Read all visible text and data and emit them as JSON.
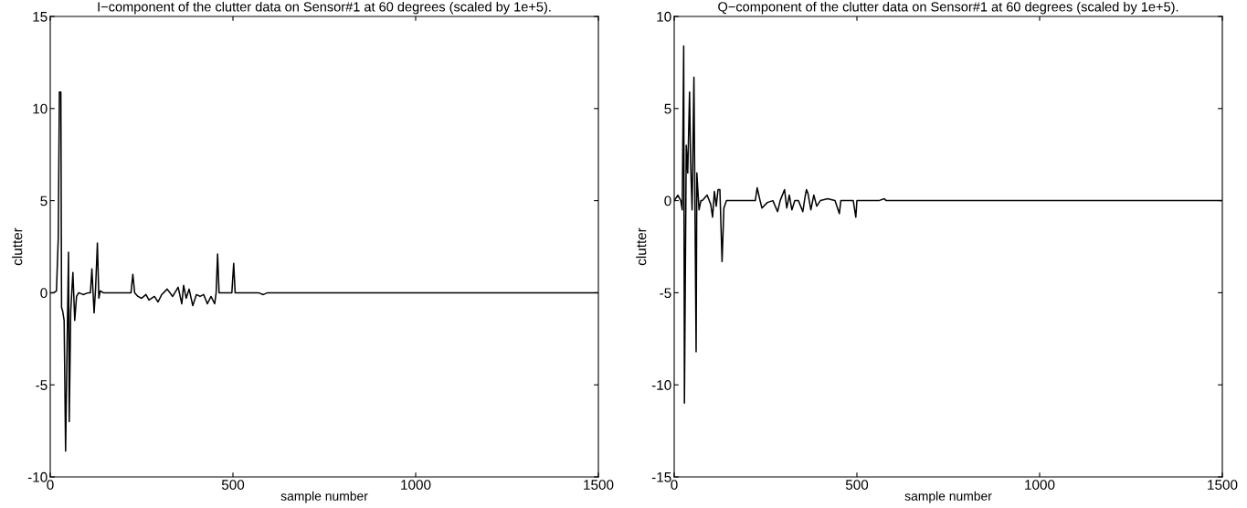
{
  "chart_data": [
    {
      "type": "line",
      "title": "I−component of the clutter data on Sensor#1 at 60 degrees (scaled by 1e+5).",
      "xlabel": "sample number",
      "ylabel": "clutter",
      "xlim": [
        0,
        1500
      ],
      "ylim": [
        -10,
        15
      ],
      "xticks": [
        0,
        500,
        1000,
        1500
      ],
      "yticks": [
        -10,
        -5,
        0,
        5,
        10,
        15
      ],
      "grid": false,
      "legend": false,
      "series": [
        {
          "color": "#000000",
          "x": [
            0,
            10,
            17,
            22,
            25,
            29,
            31,
            34,
            38,
            42,
            46,
            50,
            52,
            56,
            62,
            67,
            72,
            78,
            90,
            104,
            110,
            114,
            120,
            124,
            129,
            133,
            137,
            145,
            200,
            221,
            226,
            231,
            240,
            250,
            262,
            270,
            285,
            295,
            305,
            320,
            335,
            350,
            360,
            365,
            372,
            380,
            390,
            400,
            410,
            420,
            430,
            440,
            450,
            454,
            458,
            462,
            480,
            497,
            502,
            506,
            540,
            570,
            583,
            595,
            700,
            1000,
            1500
          ],
          "values": [
            0,
            0,
            0.1,
            3,
            10.9,
            10.9,
            -0.8,
            -1.0,
            -1.5,
            -8.6,
            -3,
            2.2,
            -7,
            -1,
            1.1,
            -1.5,
            -0.2,
            0,
            -0.1,
            0,
            0,
            1.3,
            -1.1,
            0.2,
            2.7,
            -0.3,
            0.1,
            0,
            0,
            0,
            1.0,
            0,
            -0.2,
            -0.3,
            -0.1,
            -0.4,
            -0.2,
            -0.5,
            -0.1,
            0.2,
            -0.2,
            0.3,
            -0.6,
            0.4,
            -0.3,
            0.2,
            -0.7,
            -0.1,
            -0.2,
            -0.1,
            -0.6,
            -0.2,
            -0.6,
            0,
            2.1,
            0,
            0,
            0,
            1.6,
            0,
            0,
            0,
            -0.1,
            0,
            0,
            0,
            0
          ]
        }
      ]
    },
    {
      "type": "line",
      "title": "Q−component of the clutter data on Sensor#1 at 60 degrees (scaled by 1e+5).",
      "xlabel": "sample number",
      "ylabel": "clutter",
      "xlim": [
        0,
        1500
      ],
      "ylim": [
        -15,
        10
      ],
      "xticks": [
        0,
        500,
        1000,
        1500
      ],
      "yticks": [
        -15,
        -10,
        -5,
        0,
        5,
        10
      ],
      "grid": false,
      "legend": false,
      "series": [
        {
          "color": "#000000",
          "x": [
            0,
            10,
            18,
            22,
            26,
            28,
            33,
            37,
            42,
            45,
            49,
            54,
            60,
            62,
            68,
            73,
            77,
            90,
            100,
            105,
            110,
            115,
            120,
            125,
            131,
            136,
            143,
            200,
            222,
            227,
            235,
            240,
            255,
            270,
            283,
            290,
            302,
            308,
            315,
            322,
            330,
            340,
            352,
            358,
            362,
            366,
            374,
            382,
            390,
            400,
            420,
            440,
            452,
            456,
            470,
            490,
            497,
            500,
            518,
            560,
            575,
            580,
            700,
            1000,
            1500
          ],
          "values": [
            0,
            0.3,
            0,
            -0.5,
            8.4,
            -11,
            3,
            1.5,
            5.9,
            2,
            -0.5,
            6.7,
            -8.2,
            1.5,
            -0.5,
            0,
            0,
            0.3,
            -0.2,
            -0.9,
            0.5,
            -0.3,
            0.6,
            0.6,
            -3.3,
            -0.4,
            0,
            0,
            0,
            0.7,
            0,
            -0.4,
            -0.1,
            0,
            -0.6,
            0,
            0.6,
            -0.4,
            0.3,
            -0.5,
            0,
            0,
            -0.6,
            0.2,
            0.6,
            0.4,
            -0.5,
            0.3,
            -0.3,
            0,
            0.1,
            0,
            -0.7,
            0,
            0,
            0,
            -0.9,
            0,
            0,
            0,
            0.1,
            0,
            0,
            0,
            0
          ]
        }
      ]
    }
  ]
}
